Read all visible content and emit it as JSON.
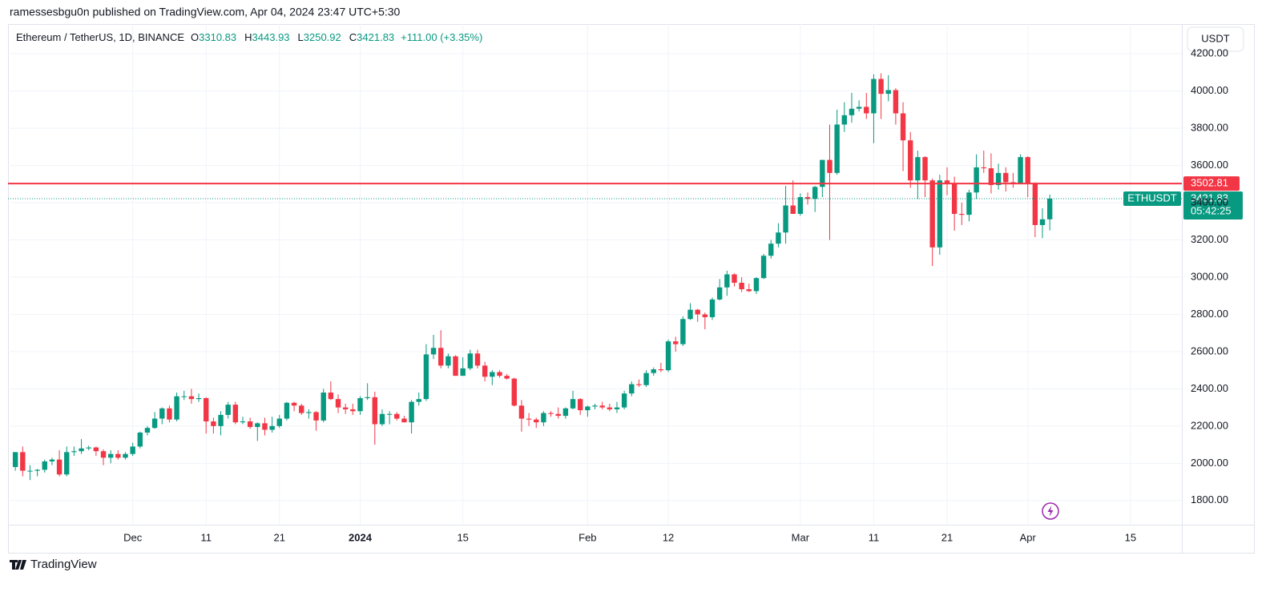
{
  "header": {
    "text": "ramessesbgu0n published on TradingView.com, Apr 04, 2024 23:47 UTC+5:30"
  },
  "chart_data": {
    "type": "candlestick",
    "legend": {
      "symbol": "Ethereum / TetherUS, 1D, BINANCE",
      "labels": [
        "O",
        "H",
        "L",
        "C"
      ],
      "change": "+111.00 (+3.35%)"
    },
    "currency": "USDT",
    "ticker": "ETHUSDT",
    "countdown": "05:42:25",
    "up_color": "#089981",
    "down_color": "#f23645",
    "hline": {
      "value": 3502.81,
      "color": "#f23645"
    },
    "x": [
      "2023-11-15",
      "2023-11-16",
      "2023-11-17",
      "2023-11-18",
      "2023-11-19",
      "2023-11-20",
      "2023-11-21",
      "2023-11-22",
      "2023-11-23",
      "2023-11-24",
      "2023-11-25",
      "2023-11-26",
      "2023-11-27",
      "2023-11-28",
      "2023-11-29",
      "2023-11-30",
      "2023-12-01",
      "2023-12-02",
      "2023-12-03",
      "2023-12-04",
      "2023-12-05",
      "2023-12-06",
      "2023-12-07",
      "2023-12-08",
      "2023-12-09",
      "2023-12-10",
      "2023-12-11",
      "2023-12-12",
      "2023-12-13",
      "2023-12-14",
      "2023-12-15",
      "2023-12-16",
      "2023-12-17",
      "2023-12-18",
      "2023-12-19",
      "2023-12-20",
      "2023-12-21",
      "2023-12-22",
      "2023-12-23",
      "2023-12-24",
      "2023-12-25",
      "2023-12-26",
      "2023-12-27",
      "2023-12-28",
      "2023-12-29",
      "2023-12-30",
      "2023-12-31",
      "2024-01-01",
      "2024-01-02",
      "2024-01-03",
      "2024-01-04",
      "2024-01-05",
      "2024-01-06",
      "2024-01-07",
      "2024-01-08",
      "2024-01-09",
      "2024-01-10",
      "2024-01-11",
      "2024-01-12",
      "2024-01-13",
      "2024-01-14",
      "2024-01-15",
      "2024-01-16",
      "2024-01-17",
      "2024-01-18",
      "2024-01-19",
      "2024-01-20",
      "2024-01-21",
      "2024-01-22",
      "2024-01-23",
      "2024-01-24",
      "2024-01-25",
      "2024-01-26",
      "2024-01-27",
      "2024-01-28",
      "2024-01-29",
      "2024-01-30",
      "2024-01-31",
      "2024-02-01",
      "2024-02-02",
      "2024-02-03",
      "2024-02-04",
      "2024-02-05",
      "2024-02-06",
      "2024-02-07",
      "2024-02-08",
      "2024-02-09",
      "2024-02-10",
      "2024-02-11",
      "2024-02-12",
      "2024-02-13",
      "2024-02-14",
      "2024-02-15",
      "2024-02-16",
      "2024-02-17",
      "2024-02-18",
      "2024-02-19",
      "2024-02-20",
      "2024-02-21",
      "2024-02-22",
      "2024-02-23",
      "2024-02-24",
      "2024-02-25",
      "2024-02-26",
      "2024-02-27",
      "2024-02-28",
      "2024-02-29",
      "2024-03-01",
      "2024-03-02",
      "2024-03-03",
      "2024-03-04",
      "2024-03-05",
      "2024-03-06",
      "2024-03-07",
      "2024-03-08",
      "2024-03-09",
      "2024-03-10",
      "2024-03-11",
      "2024-03-12",
      "2024-03-13",
      "2024-03-14",
      "2024-03-15",
      "2024-03-16",
      "2024-03-17",
      "2024-03-18",
      "2024-03-19",
      "2024-03-20",
      "2024-03-21",
      "2024-03-22",
      "2024-03-23",
      "2024-03-24",
      "2024-03-25",
      "2024-03-26",
      "2024-03-27",
      "2024-03-28",
      "2024-03-29",
      "2024-03-30",
      "2024-03-31",
      "2024-04-01",
      "2024-04-02",
      "2024-04-03",
      "2024-04-04"
    ],
    "open": [
      1980,
      2060,
      1960,
      1960,
      1965,
      2010,
      2020,
      1940,
      2060,
      2065,
      2080,
      2085,
      2065,
      2030,
      2050,
      2030,
      2050,
      2090,
      2165,
      2190,
      2240,
      2295,
      2235,
      2360,
      2360,
      2345,
      2350,
      2225,
      2200,
      2260,
      2315,
      2220,
      2225,
      2195,
      2215,
      2180,
      2200,
      2240,
      2325,
      2310,
      2270,
      2275,
      2230,
      2380,
      2345,
      2300,
      2290,
      2280,
      2350,
      2355,
      2210,
      2265,
      2265,
      2240,
      2220,
      2330,
      2345,
      2585,
      2620,
      2525,
      2575,
      2470,
      2510,
      2590,
      2525,
      2465,
      2490,
      2470,
      2455,
      2310,
      2240,
      2235,
      2220,
      2270,
      2265,
      2255,
      2295,
      2345,
      2285,
      2305,
      2310,
      2300,
      2290,
      2300,
      2375,
      2425,
      2420,
      2485,
      2505,
      2500,
      2655,
      2640,
      2775,
      2825,
      2800,
      2785,
      2880,
      2945,
      3015,
      2970,
      2935,
      2925,
      2995,
      3115,
      3180,
      3240,
      3385,
      3340,
      3430,
      3420,
      3485,
      3630,
      3560,
      3820,
      3870,
      3905,
      3915,
      3880,
      4065,
      3985,
      4005,
      3880,
      3735,
      3520,
      3645,
      3520,
      3160,
      3520,
      3500,
      3340,
      3335,
      3455,
      3590,
      3585,
      3495,
      3560,
      3510,
      3505,
      3645,
      3505,
      3280,
      3310.83
    ],
    "high": [
      2060,
      2090,
      1990,
      1970,
      2020,
      2030,
      2070,
      2090,
      2090,
      2130,
      2095,
      2090,
      2075,
      2070,
      2070,
      2060,
      2110,
      2170,
      2200,
      2275,
      2300,
      2310,
      2380,
      2390,
      2400,
      2375,
      2355,
      2245,
      2280,
      2330,
      2330,
      2250,
      2245,
      2220,
      2245,
      2250,
      2260,
      2330,
      2330,
      2320,
      2290,
      2280,
      2400,
      2440,
      2370,
      2320,
      2320,
      2360,
      2430,
      2385,
      2290,
      2280,
      2275,
      2255,
      2340,
      2380,
      2640,
      2690,
      2715,
      2590,
      2580,
      2570,
      2610,
      2610,
      2545,
      2500,
      2500,
      2480,
      2460,
      2340,
      2270,
      2245,
      2280,
      2280,
      2300,
      2300,
      2390,
      2350,
      2310,
      2320,
      2330,
      2320,
      2330,
      2390,
      2440,
      2450,
      2500,
      2515,
      2540,
      2665,
      2680,
      2790,
      2860,
      2830,
      2810,
      2890,
      2990,
      3035,
      3020,
      3000,
      2965,
      3000,
      3125,
      3200,
      3290,
      3490,
      3520,
      3450,
      3455,
      3490,
      3630,
      3820,
      3900,
      3940,
      3990,
      3950,
      3990,
      4090,
      4095,
      4085,
      4015,
      3940,
      3780,
      3680,
      3650,
      3530,
      3550,
      3590,
      3540,
      3400,
      3470,
      3660,
      3680,
      3665,
      3610,
      3590,
      3560,
      3660,
      3650,
      3510,
      3370,
      3443.93
    ],
    "low": [
      1960,
      1930,
      1910,
      1930,
      1950,
      1990,
      1930,
      1930,
      2040,
      2050,
      2070,
      2040,
      1990,
      2000,
      2020,
      2020,
      2040,
      2080,
      2150,
      2185,
      2210,
      2220,
      2225,
      2340,
      2320,
      2330,
      2160,
      2160,
      2150,
      2240,
      2210,
      2210,
      2185,
      2120,
      2150,
      2165,
      2190,
      2230,
      2280,
      2260,
      2240,
      2175,
      2220,
      2340,
      2270,
      2265,
      2260,
      2260,
      2340,
      2100,
      2200,
      2210,
      2230,
      2220,
      2160,
      2310,
      2335,
      2560,
      2510,
      2510,
      2470,
      2470,
      2500,
      2510,
      2440,
      2420,
      2460,
      2450,
      2305,
      2170,
      2200,
      2190,
      2200,
      2250,
      2240,
      2240,
      2290,
      2260,
      2250,
      2290,
      2290,
      2280,
      2270,
      2290,
      2360,
      2410,
      2410,
      2470,
      2490,
      2490,
      2600,
      2630,
      2770,
      2760,
      2720,
      2770,
      2875,
      2900,
      2950,
      2920,
      2920,
      2910,
      2990,
      3100,
      3160,
      3180,
      3350,
      3330,
      3390,
      3350,
      3430,
      3200,
      3550,
      3780,
      3830,
      3890,
      3850,
      3720,
      3850,
      3945,
      3820,
      3570,
      3480,
      3420,
      3430,
      3060,
      3120,
      3440,
      3250,
      3280,
      3300,
      3420,
      3560,
      3450,
      3470,
      3460,
      3480,
      3500,
      3430,
      3215,
      3210,
      3250.92
    ],
    "close": [
      2060,
      1960,
      1960,
      1965,
      2010,
      2020,
      1940,
      2060,
      2065,
      2080,
      2085,
      2065,
      2030,
      2050,
      2030,
      2050,
      2090,
      2165,
      2190,
      2240,
      2295,
      2235,
      2360,
      2360,
      2345,
      2350,
      2225,
      2200,
      2260,
      2315,
      2220,
      2225,
      2195,
      2215,
      2180,
      2200,
      2240,
      2325,
      2310,
      2270,
      2275,
      2230,
      2380,
      2345,
      2300,
      2290,
      2280,
      2350,
      2355,
      2210,
      2265,
      2265,
      2240,
      2220,
      2330,
      2345,
      2585,
      2620,
      2525,
      2575,
      2470,
      2510,
      2590,
      2525,
      2465,
      2490,
      2470,
      2455,
      2310,
      2240,
      2235,
      2220,
      2270,
      2265,
      2255,
      2295,
      2345,
      2285,
      2305,
      2310,
      2300,
      2290,
      2300,
      2375,
      2425,
      2420,
      2485,
      2505,
      2500,
      2655,
      2640,
      2775,
      2825,
      2800,
      2785,
      2880,
      2945,
      3015,
      2970,
      2935,
      2925,
      2995,
      3115,
      3180,
      3240,
      3385,
      3340,
      3430,
      3420,
      3485,
      3630,
      3560,
      3820,
      3870,
      3905,
      3915,
      3880,
      4065,
      3985,
      4005,
      3880,
      3735,
      3520,
      3645,
      3520,
      3160,
      3520,
      3500,
      3340,
      3335,
      3455,
      3590,
      3585,
      3495,
      3560,
      3510,
      3505,
      3645,
      3505,
      3280,
      3310.83,
      3421.83
    ],
    "xlim": [
      "2023-11-14",
      "2024-04-22"
    ],
    "xticks": [
      {
        "value": "2023-12-01",
        "label": "Dec"
      },
      {
        "value": "2023-12-11",
        "label": "11"
      },
      {
        "value": "2023-12-21",
        "label": "21"
      },
      {
        "value": "2024-01-01",
        "label": "2024"
      },
      {
        "value": "2024-01-15",
        "label": "15"
      },
      {
        "value": "2024-02-01",
        "label": "Feb"
      },
      {
        "value": "2024-02-12",
        "label": "12"
      },
      {
        "value": "2024-03-01",
        "label": "Mar"
      },
      {
        "value": "2024-03-11",
        "label": "11"
      },
      {
        "value": "2024-03-21",
        "label": "21"
      },
      {
        "value": "2024-04-01",
        "label": "Apr"
      },
      {
        "value": "2024-04-15",
        "label": "15"
      }
    ],
    "ylim": [
      1670,
      4360
    ],
    "yticks": [
      {
        "value": 1800,
        "label": "1800.00"
      },
      {
        "value": 2000,
        "label": "2000.00"
      },
      {
        "value": 2200,
        "label": "2200.00"
      },
      {
        "value": 2400,
        "label": "2400.00"
      },
      {
        "value": 2600,
        "label": "2600.00"
      },
      {
        "value": 2800,
        "label": "2800.00"
      },
      {
        "value": 3000,
        "label": "3000.00"
      },
      {
        "value": 3200,
        "label": "3200.00"
      },
      {
        "value": 3400,
        "label": "3400.00"
      },
      {
        "value": 3600,
        "label": "3600.00"
      },
      {
        "value": 3800,
        "label": "3800.00"
      },
      {
        "value": 4000,
        "label": "4000.00"
      },
      {
        "value": 4200,
        "label": "4200.00"
      }
    ],
    "grid": true
  },
  "footer": {
    "brand": "TradingView"
  }
}
